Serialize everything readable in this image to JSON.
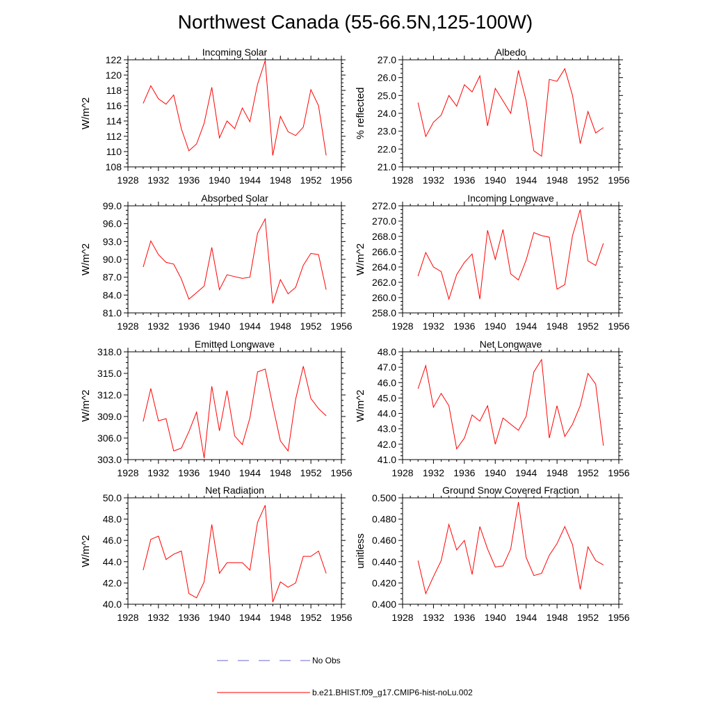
{
  "title": "Northwest Canada (55-66.5N,125-100W)",
  "colors": {
    "model": "#ff0000",
    "obs": "#6a6acd",
    "axis": "#000000"
  },
  "legend": [
    {
      "label": "No Obs",
      "style": "dashed",
      "color": "#6a6acd"
    },
    {
      "label": "b.e21.BHIST.f09_g17.CMIP6-hist-noLu.002",
      "style": "solid",
      "color": "#ff0000"
    }
  ],
  "chart_data": [
    {
      "type": "line",
      "title": "Incoming Solar",
      "ylabel": "W/m^2",
      "xlim": [
        1928,
        1956
      ],
      "xticks": [
        "1928",
        "1932",
        "1936",
        "1940",
        "1944",
        "1948",
        "1952",
        "1956"
      ],
      "ylim": [
        108,
        122
      ],
      "yticks": [
        "108",
        "110",
        "112",
        "114",
        "116",
        "118",
        "120",
        "122"
      ],
      "x": [
        1930,
        1931,
        1932,
        1933,
        1934,
        1935,
        1936,
        1937,
        1938,
        1939,
        1940,
        1941,
        1942,
        1943,
        1944,
        1945,
        1946,
        1947,
        1948,
        1949,
        1950,
        1951,
        1952,
        1953,
        1954
      ],
      "series": [
        {
          "name": "b.e21.BHIST.f09_g17.CMIP6-hist-noLu.002",
          "values": [
            116.3,
            118.6,
            116.9,
            116.2,
            117.4,
            113.0,
            110.1,
            111.0,
            113.7,
            118.4,
            111.8,
            114.0,
            113.0,
            115.7,
            113.9,
            118.8,
            121.9,
            109.5,
            114.6,
            112.6,
            112.1,
            113.2,
            118.1,
            116.0,
            109.5
          ]
        }
      ]
    },
    {
      "type": "line",
      "title": "Albedo",
      "ylabel": "% reflected",
      "xlim": [
        1928,
        1956
      ],
      "xticks": [
        "1928",
        "1932",
        "1936",
        "1940",
        "1944",
        "1948",
        "1952",
        "1956"
      ],
      "ylim": [
        21.0,
        27.0
      ],
      "yticks": [
        "21.0",
        "22.0",
        "23.0",
        "24.0",
        "25.0",
        "26.0",
        "27.0"
      ],
      "x": [
        1930,
        1931,
        1932,
        1933,
        1934,
        1935,
        1936,
        1937,
        1938,
        1939,
        1940,
        1941,
        1942,
        1943,
        1944,
        1945,
        1946,
        1947,
        1948,
        1949,
        1950,
        1951,
        1952,
        1953,
        1954
      ],
      "series": [
        {
          "name": "b.e21.BHIST.f09_g17.CMIP6-hist-noLu.002",
          "values": [
            24.6,
            22.7,
            23.5,
            23.9,
            25.0,
            24.4,
            25.6,
            25.2,
            26.1,
            23.3,
            25.4,
            24.7,
            24.0,
            26.4,
            24.7,
            21.9,
            21.6,
            25.9,
            25.8,
            26.5,
            25.0,
            22.3,
            24.1,
            22.9,
            23.2
          ]
        }
      ]
    },
    {
      "type": "line",
      "title": "Absorbed Solar",
      "ylabel": "W/m^2",
      "xlim": [
        1928,
        1956
      ],
      "xticks": [
        "1928",
        "1932",
        "1936",
        "1940",
        "1944",
        "1948",
        "1952",
        "1956"
      ],
      "ylim": [
        81.0,
        99.0
      ],
      "yticks": [
        "81.0",
        "84.0",
        "87.0",
        "90.0",
        "93.0",
        "96.0",
        "99.0"
      ],
      "x": [
        1930,
        1931,
        1932,
        1933,
        1934,
        1935,
        1936,
        1937,
        1938,
        1939,
        1940,
        1941,
        1942,
        1943,
        1944,
        1945,
        1946,
        1947,
        1948,
        1949,
        1950,
        1951,
        1952,
        1953,
        1954
      ],
      "series": [
        {
          "name": "b.e21.BHIST.f09_g17.CMIP6-hist-noLu.002",
          "values": [
            88.7,
            93.1,
            90.8,
            89.5,
            89.2,
            86.7,
            83.3,
            84.4,
            85.5,
            92.0,
            84.9,
            87.4,
            87.1,
            86.8,
            87.0,
            94.4,
            96.8,
            82.6,
            86.6,
            84.2,
            85.3,
            89.0,
            91.0,
            90.8,
            84.9
          ]
        }
      ]
    },
    {
      "type": "line",
      "title": "Incoming Longwave",
      "ylabel": "W/m^2",
      "xlim": [
        1928,
        1956
      ],
      "xticks": [
        "1928",
        "1932",
        "1936",
        "1940",
        "1944",
        "1948",
        "1952",
        "1956"
      ],
      "ylim": [
        258.0,
        272.0
      ],
      "yticks": [
        "258.0",
        "260.0",
        "262.0",
        "264.0",
        "266.0",
        "268.0",
        "270.0",
        "272.0"
      ],
      "x": [
        1930,
        1931,
        1932,
        1933,
        1934,
        1935,
        1936,
        1937,
        1938,
        1939,
        1940,
        1941,
        1942,
        1943,
        1944,
        1945,
        1946,
        1947,
        1948,
        1949,
        1950,
        1951,
        1952,
        1953,
        1954
      ],
      "series": [
        {
          "name": "b.e21.BHIST.f09_g17.CMIP6-hist-noLu.002",
          "values": [
            262.8,
            265.9,
            264.0,
            263.4,
            259.8,
            263.0,
            264.6,
            265.7,
            259.8,
            268.8,
            265.0,
            268.9,
            263.1,
            262.3,
            264.9,
            268.5,
            268.1,
            267.9,
            261.1,
            261.7,
            268.1,
            271.5,
            264.8,
            264.2,
            267.1
          ]
        }
      ]
    },
    {
      "type": "line",
      "title": "Emitted Longwave",
      "ylabel": "W/m^2",
      "xlim": [
        1928,
        1956
      ],
      "xticks": [
        "1928",
        "1932",
        "1936",
        "1940",
        "1944",
        "1948",
        "1952",
        "1956"
      ],
      "ylim": [
        303.0,
        318.0
      ],
      "yticks": [
        "303.0",
        "306.0",
        "309.0",
        "312.0",
        "315.0",
        "318.0"
      ],
      "x": [
        1930,
        1931,
        1932,
        1933,
        1934,
        1935,
        1936,
        1937,
        1938,
        1939,
        1940,
        1941,
        1942,
        1943,
        1944,
        1945,
        1946,
        1947,
        1948,
        1949,
        1950,
        1951,
        1952,
        1953,
        1954
      ],
      "series": [
        {
          "name": "b.e21.BHIST.f09_g17.CMIP6-hist-noLu.002",
          "values": [
            308.3,
            312.9,
            308.4,
            308.7,
            304.2,
            304.6,
            306.9,
            309.6,
            303.2,
            313.2,
            307.0,
            312.6,
            306.3,
            305.1,
            308.8,
            315.2,
            315.6,
            310.5,
            305.6,
            304.2,
            311.4,
            316.0,
            311.5,
            310.1,
            309.1
          ]
        }
      ]
    },
    {
      "type": "line",
      "title": "Net Longwave",
      "ylabel": "W/m^2",
      "xlim": [
        1928,
        1956
      ],
      "xticks": [
        "1928",
        "1932",
        "1936",
        "1940",
        "1944",
        "1948",
        "1952",
        "1956"
      ],
      "ylim": [
        41.0,
        48.0
      ],
      "yticks": [
        "41.0",
        "42.0",
        "43.0",
        "44.0",
        "45.0",
        "46.0",
        "47.0",
        "48.0"
      ],
      "x": [
        1930,
        1931,
        1932,
        1933,
        1934,
        1935,
        1936,
        1937,
        1938,
        1939,
        1940,
        1941,
        1942,
        1943,
        1944,
        1945,
        1946,
        1947,
        1948,
        1949,
        1950,
        1951,
        1952,
        1953,
        1954
      ],
      "series": [
        {
          "name": "b.e21.BHIST.f09_g17.CMIP6-hist-noLu.002",
          "values": [
            45.6,
            47.1,
            44.4,
            45.3,
            44.5,
            41.7,
            42.4,
            43.9,
            43.5,
            44.5,
            42.0,
            43.7,
            43.3,
            42.9,
            43.8,
            46.7,
            47.5,
            42.4,
            44.5,
            42.5,
            43.3,
            44.5,
            46.6,
            45.9,
            41.9
          ]
        }
      ]
    },
    {
      "type": "line",
      "title": "Net Radiation",
      "ylabel": "W/m^2",
      "xlim": [
        1928,
        1956
      ],
      "xticks": [
        "1928",
        "1932",
        "1936",
        "1940",
        "1944",
        "1948",
        "1952",
        "1956"
      ],
      "ylim": [
        40.0,
        50.0
      ],
      "yticks": [
        "40.0",
        "42.0",
        "44.0",
        "46.0",
        "48.0",
        "50.0"
      ],
      "x": [
        1930,
        1931,
        1932,
        1933,
        1934,
        1935,
        1936,
        1937,
        1938,
        1939,
        1940,
        1941,
        1942,
        1943,
        1944,
        1945,
        1946,
        1947,
        1948,
        1949,
        1950,
        1951,
        1952,
        1953,
        1954
      ],
      "series": [
        {
          "name": "b.e21.BHIST.f09_g17.CMIP6-hist-noLu.002",
          "values": [
            43.2,
            46.1,
            46.4,
            44.2,
            44.7,
            45.0,
            41.0,
            40.6,
            42.1,
            47.5,
            42.9,
            43.9,
            43.9,
            43.9,
            43.2,
            47.7,
            49.3,
            40.2,
            42.1,
            41.6,
            42.0,
            44.5,
            44.5,
            45.0,
            42.9
          ]
        }
      ]
    },
    {
      "type": "line",
      "title": "Ground Snow Covered Fraction",
      "ylabel": "unitless",
      "xlim": [
        1928,
        1956
      ],
      "xticks": [
        "1928",
        "1932",
        "1936",
        "1940",
        "1944",
        "1948",
        "1952",
        "1956"
      ],
      "ylim": [
        0.4,
        0.5
      ],
      "yticks": [
        "0.400",
        "0.420",
        "0.440",
        "0.460",
        "0.480",
        "0.500"
      ],
      "x": [
        1930,
        1931,
        1932,
        1933,
        1934,
        1935,
        1936,
        1937,
        1938,
        1939,
        1940,
        1941,
        1942,
        1943,
        1944,
        1945,
        1946,
        1947,
        1948,
        1949,
        1950,
        1951,
        1952,
        1953,
        1954
      ],
      "series": [
        {
          "name": "b.e21.BHIST.f09_g17.CMIP6-hist-noLu.002",
          "values": [
            0.441,
            0.41,
            0.426,
            0.441,
            0.475,
            0.451,
            0.46,
            0.428,
            0.473,
            0.452,
            0.435,
            0.436,
            0.452,
            0.496,
            0.444,
            0.427,
            0.429,
            0.446,
            0.457,
            0.473,
            0.456,
            0.414,
            0.454,
            0.441,
            0.437
          ]
        }
      ]
    }
  ]
}
